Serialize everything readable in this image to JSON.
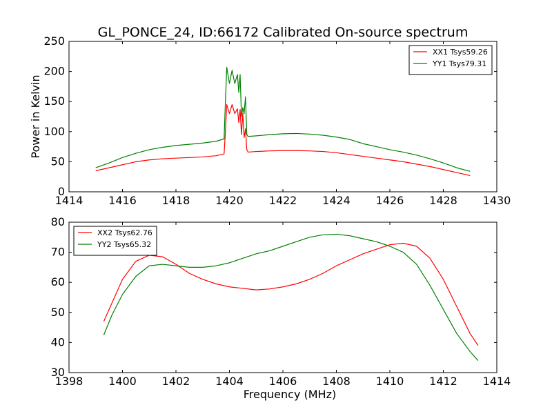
{
  "figure": {
    "title": "GL_PONCE_24, ID:66172 Calibrated On-source spectrum"
  },
  "chart_data": [
    {
      "type": "line",
      "title": "GL_PONCE_24, ID:66172 Calibrated On-source spectrum",
      "xlabel": "",
      "ylabel": "Power in Kelvin",
      "xlim": [
        1414,
        1430
      ],
      "ylim": [
        0,
        250
      ],
      "xticks": [
        1414,
        1416,
        1418,
        1420,
        1422,
        1424,
        1426,
        1428,
        1430
      ],
      "yticks": [
        0,
        50,
        100,
        150,
        200,
        250
      ],
      "grid": false,
      "legend": "top-right",
      "series": [
        {
          "name": "XX1 Tsys59.26",
          "color": "#ff0000",
          "x": [
            1415.0,
            1415.5,
            1416.0,
            1416.5,
            1417.0,
            1417.5,
            1418.0,
            1418.5,
            1419.0,
            1419.5,
            1419.8,
            1419.85,
            1419.9,
            1420.0,
            1420.1,
            1420.2,
            1420.3,
            1420.35,
            1420.4,
            1420.45,
            1420.5,
            1420.55,
            1420.6,
            1420.65,
            1420.7,
            1421.0,
            1421.5,
            1422.0,
            1422.5,
            1423.0,
            1423.5,
            1424.0,
            1424.5,
            1425.0,
            1425.5,
            1426.0,
            1426.5,
            1427.0,
            1427.5,
            1428.0,
            1428.5,
            1429.0
          ],
          "y": [
            35,
            40,
            45,
            50,
            53,
            55,
            56,
            57,
            58,
            60,
            63,
            100,
            145,
            130,
            145,
            130,
            138,
            115,
            137,
            95,
            130,
            90,
            105,
            70,
            66,
            67,
            68,
            68.5,
            68.5,
            68,
            67,
            65,
            62,
            59,
            56,
            53,
            50,
            46,
            42,
            37,
            32,
            27
          ]
        },
        {
          "name": "YY1 Tsys79.31",
          "color": "#008000",
          "x": [
            1415.0,
            1415.5,
            1416.0,
            1416.5,
            1417.0,
            1417.5,
            1418.0,
            1418.5,
            1419.0,
            1419.5,
            1419.8,
            1419.85,
            1419.9,
            1420.0,
            1420.1,
            1420.2,
            1420.3,
            1420.35,
            1420.4,
            1420.45,
            1420.5,
            1420.55,
            1420.6,
            1420.65,
            1420.7,
            1421.0,
            1421.5,
            1422.0,
            1422.5,
            1423.0,
            1423.5,
            1424.0,
            1424.5,
            1425.0,
            1425.5,
            1426.0,
            1426.5,
            1427.0,
            1427.5,
            1428.0,
            1428.5,
            1429.0
          ],
          "y": [
            40,
            48,
            57,
            64,
            70,
            74,
            77,
            79,
            81,
            84,
            88,
            150,
            207,
            180,
            202,
            180,
            195,
            165,
            195,
            125,
            140,
            130,
            158,
            95,
            92,
            93,
            95,
            96.5,
            97,
            96,
            94,
            91,
            87,
            80,
            75,
            70,
            66,
            61,
            55,
            48,
            40,
            34
          ]
        }
      ]
    },
    {
      "type": "line",
      "title": "",
      "xlabel": "Frequency (MHz)",
      "ylabel": "",
      "xlim": [
        1398,
        1414
      ],
      "ylim": [
        30,
        80
      ],
      "xticks": [
        1398,
        1400,
        1402,
        1404,
        1406,
        1408,
        1410,
        1412,
        1414
      ],
      "yticks": [
        30,
        40,
        50,
        60,
        70,
        80
      ],
      "grid": false,
      "legend": "top-left",
      "series": [
        {
          "name": "XX2 Tsys62.76",
          "color": "#ff0000",
          "x": [
            1399.3,
            1399.6,
            1400.0,
            1400.5,
            1401.0,
            1401.5,
            1402.0,
            1402.5,
            1403.0,
            1403.5,
            1404.0,
            1404.5,
            1405.0,
            1405.5,
            1406.0,
            1406.5,
            1407.0,
            1407.5,
            1408.0,
            1408.5,
            1409.0,
            1409.5,
            1410.0,
            1410.5,
            1411.0,
            1411.5,
            1412.0,
            1412.5,
            1413.0,
            1413.3
          ],
          "y": [
            47,
            53,
            61,
            67,
            69,
            68.5,
            66,
            63,
            61,
            59.5,
            58.5,
            58,
            57.5,
            57.8,
            58.5,
            59.5,
            61,
            63,
            65.5,
            67.5,
            69.5,
            71,
            72.5,
            73,
            72,
            68,
            61,
            52,
            43,
            39
          ]
        },
        {
          "name": "YY2 Tsys65.32",
          "color": "#008000",
          "x": [
            1399.3,
            1399.6,
            1400.0,
            1400.5,
            1401.0,
            1401.5,
            1402.0,
            1402.5,
            1403.0,
            1403.5,
            1404.0,
            1404.5,
            1405.0,
            1405.5,
            1406.0,
            1406.5,
            1407.0,
            1407.5,
            1408.0,
            1408.5,
            1409.0,
            1409.5,
            1410.0,
            1410.5,
            1411.0,
            1411.5,
            1412.0,
            1412.5,
            1413.0,
            1413.3
          ],
          "y": [
            42.5,
            49,
            56,
            62,
            65.5,
            66,
            65.5,
            65,
            65,
            65.5,
            66.5,
            68,
            69.5,
            70.5,
            72,
            73.5,
            75,
            75.8,
            76,
            75.5,
            74.5,
            73.5,
            72,
            70,
            66,
            59,
            51,
            43,
            37,
            34
          ]
        }
      ]
    }
  ]
}
